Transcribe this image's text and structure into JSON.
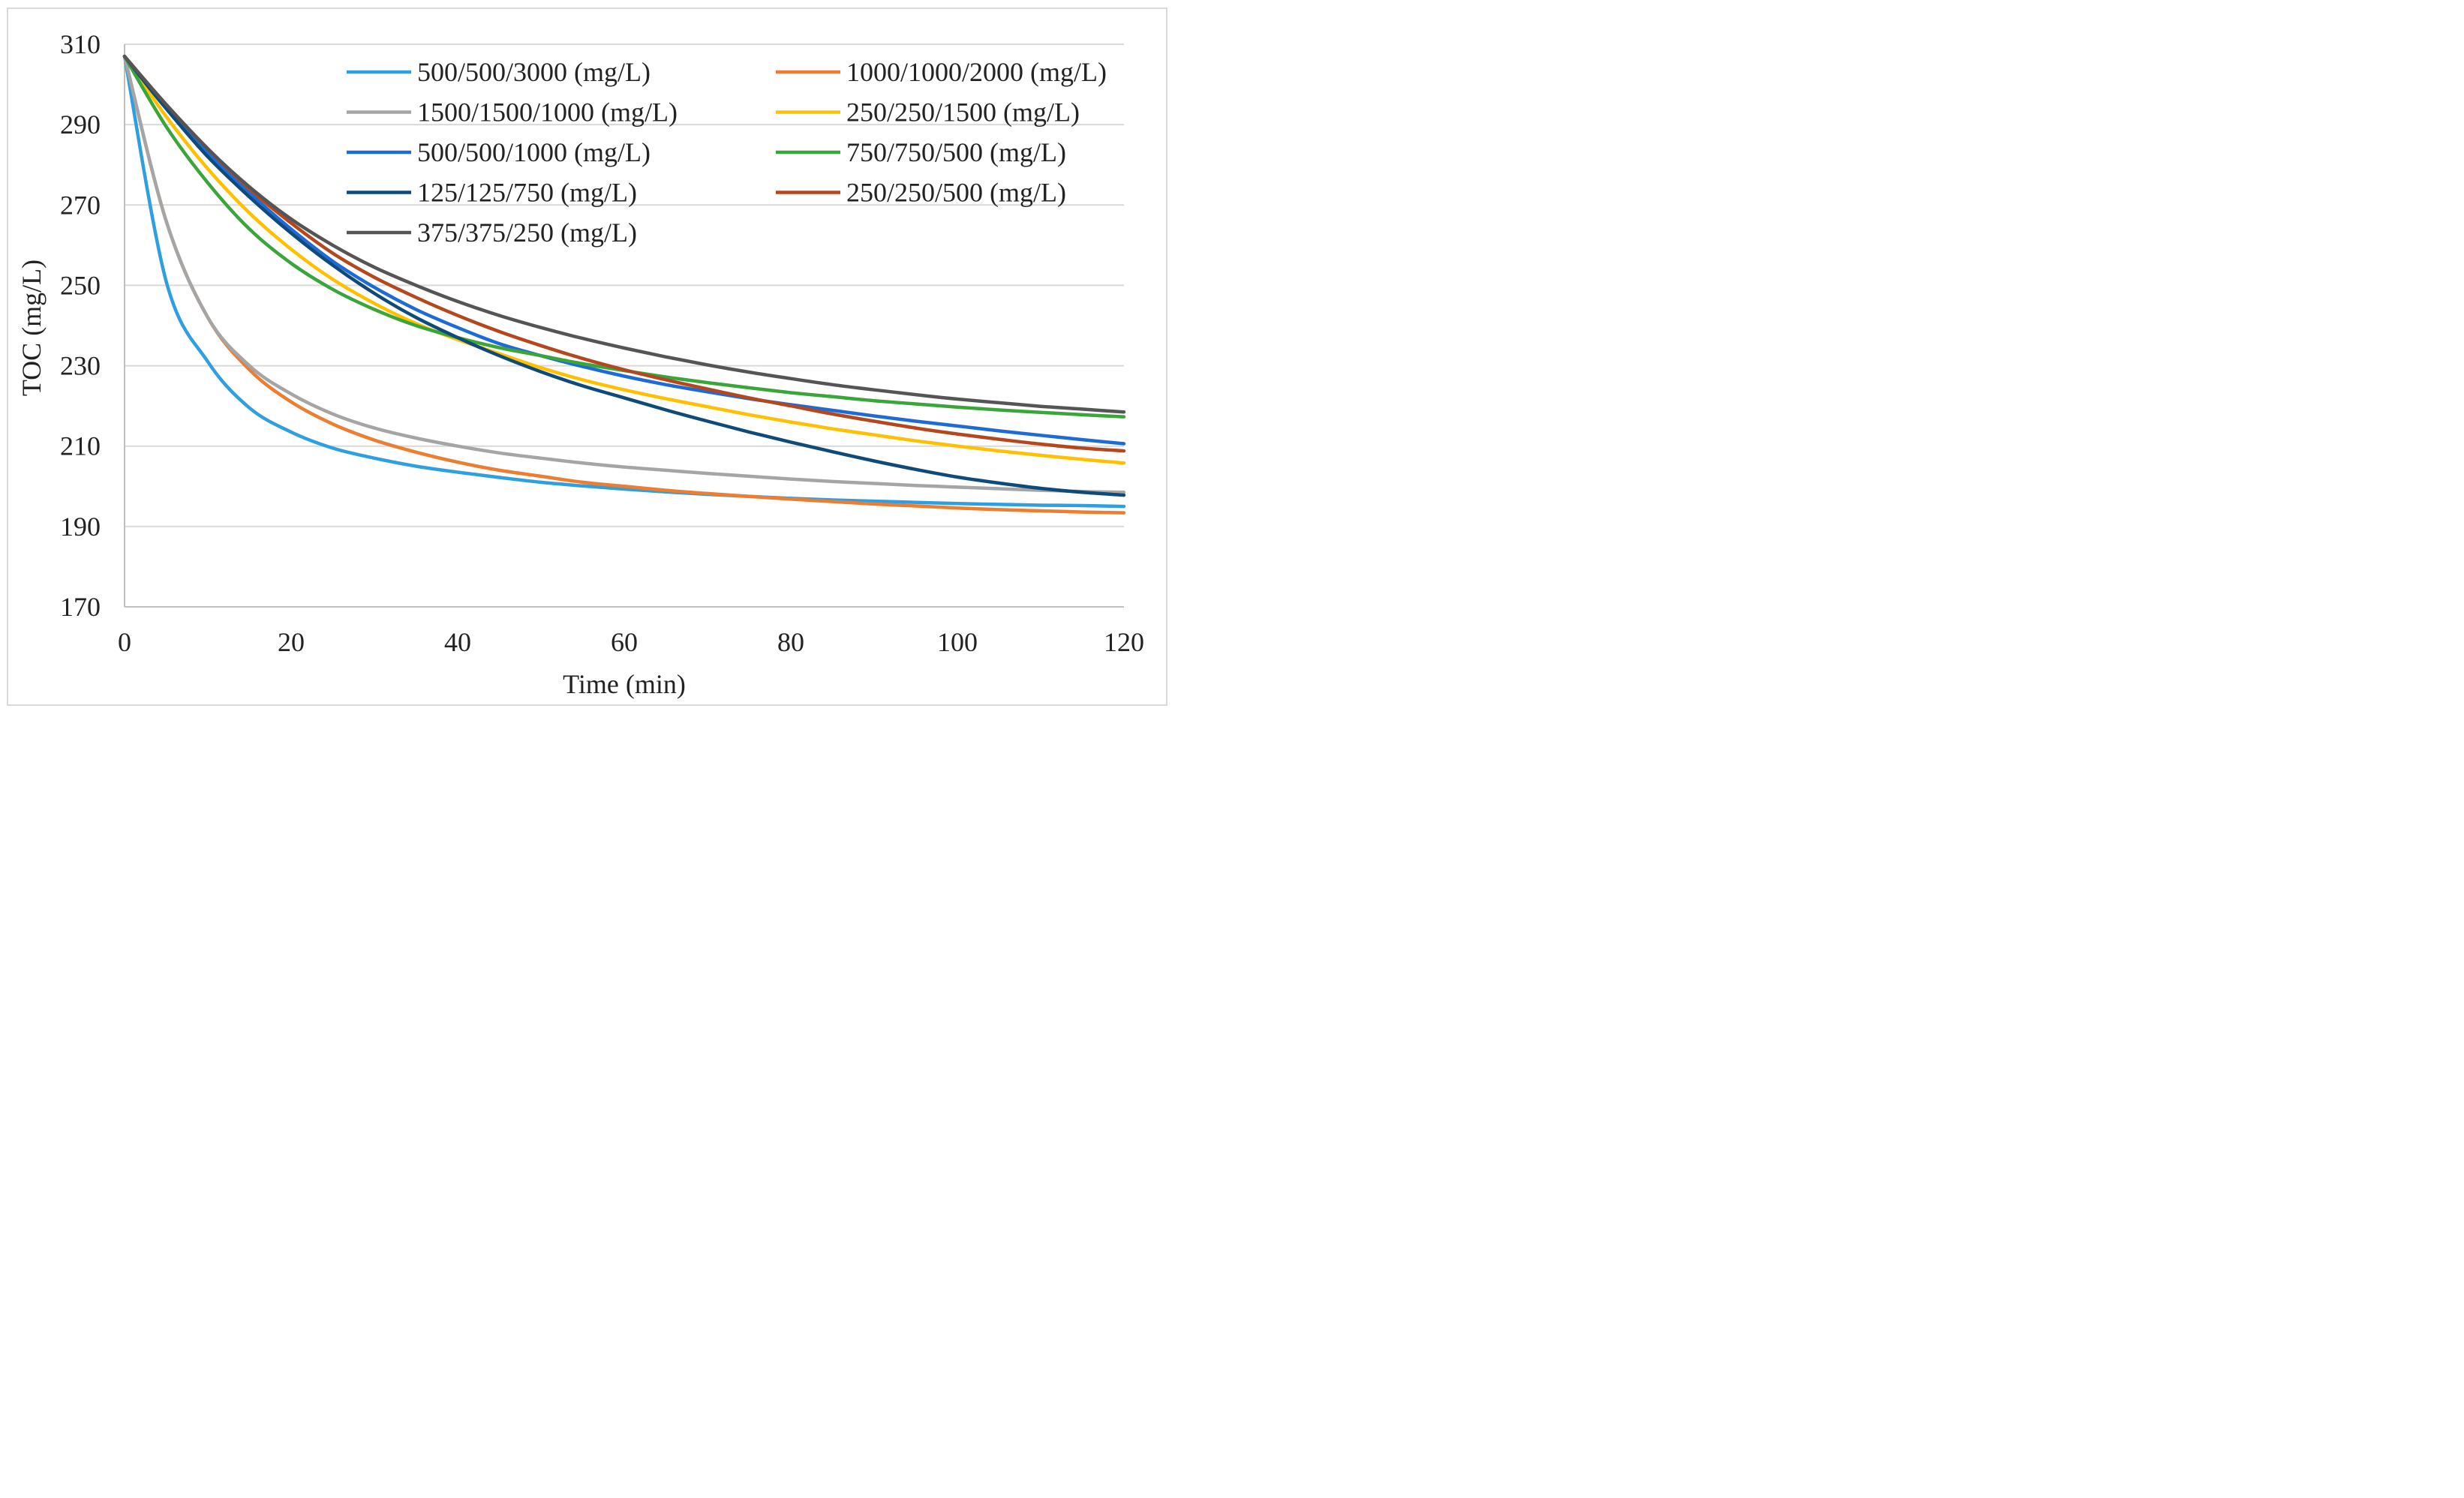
{
  "chart_data": {
    "type": "line",
    "title": "",
    "xlabel": "Time (min)",
    "ylabel": "TOC (mg/L)",
    "xlim": [
      0,
      120
    ],
    "ylim": [
      170,
      310
    ],
    "xticks": [
      0,
      20,
      40,
      60,
      80,
      100,
      120
    ],
    "yticks": [
      170,
      190,
      210,
      230,
      250,
      270,
      290,
      310
    ],
    "grid": "horizontal",
    "legend_position": "top-right",
    "x": [
      0,
      5,
      10,
      15,
      20,
      25,
      30,
      35,
      40,
      45,
      50,
      55,
      60,
      65,
      70,
      75,
      80,
      85,
      90,
      95,
      100,
      105,
      110,
      115,
      120
    ],
    "series": [
      {
        "name": "500/500/3000 (mg/L)",
        "color": "#2e9fe0",
        "values": [
          307,
          251,
          231,
          219.5,
          213.5,
          209.5,
          207,
          205,
          203.5,
          202.2,
          201,
          200.1,
          199.3,
          198.6,
          198,
          197.5,
          197,
          196.6,
          196.3,
          196,
          195.7,
          195.5,
          195.3,
          195.2,
          195
        ]
      },
      {
        "name": "1000/1000/2000 (mg/L)",
        "color": "#ed7d31",
        "values": [
          307,
          266,
          242,
          229,
          221,
          215.5,
          211.5,
          208.5,
          206,
          204,
          202.5,
          201,
          200,
          199,
          198.2,
          197.5,
          196.8,
          196.2,
          195.6,
          195.1,
          194.6,
          194.2,
          193.9,
          193.6,
          193.4
        ]
      },
      {
        "name": "1500/1500/1000 (mg/L)",
        "color": "#a5a5a5",
        "values": [
          307,
          266,
          242,
          230,
          223,
          218,
          214.5,
          212,
          210,
          208.3,
          207,
          205.8,
          204.8,
          204,
          203.2,
          202.5,
          201.8,
          201.2,
          200.7,
          200.2,
          199.8,
          199.4,
          199,
          198.7,
          198.5
        ]
      },
      {
        "name": "250/250/1500 (mg/L)",
        "color": "#ffc000",
        "values": [
          307,
          292,
          279,
          268,
          259,
          251.5,
          245.5,
          240.5,
          236.5,
          233,
          229.5,
          226.5,
          224,
          221.8,
          219.8,
          217.8,
          216,
          214.3,
          212.8,
          211.3,
          210,
          208.8,
          207.7,
          206.7,
          205.8
        ]
      },
      {
        "name": "500/500/1000 (mg/L)",
        "color": "#1f6bd6",
        "values": [
          307,
          294,
          283,
          273,
          264,
          256,
          249.5,
          244,
          239.5,
          235.5,
          232.5,
          229.8,
          227.4,
          225.3,
          223.5,
          221.8,
          220.3,
          218.9,
          217.5,
          216.2,
          215,
          213.8,
          212.7,
          211.6,
          210.6
        ]
      },
      {
        "name": "750/750/500 (mg/L)",
        "color": "#3aa63a",
        "values": [
          307,
          289.5,
          275.5,
          264,
          255.5,
          249,
          244,
          240,
          237,
          234.5,
          232.5,
          230.5,
          228.8,
          227.2,
          225.8,
          224.5,
          223.3,
          222.3,
          221.3,
          220.5,
          219.7,
          219,
          218.4,
          217.8,
          217.3
        ]
      },
      {
        "name": "125/125/750 (mg/L)",
        "color": "#0e4a7a",
        "values": [
          307,
          294,
          282,
          272,
          263,
          255,
          248,
          242,
          237,
          232.5,
          228.5,
          225,
          222,
          219,
          216.2,
          213.5,
          211,
          208.6,
          206.3,
          204.2,
          202.3,
          200.8,
          199.5,
          198.5,
          197.8
        ]
      },
      {
        "name": "250/250/500 (mg/L)",
        "color": "#b5471e",
        "values": [
          307,
          295,
          284,
          274,
          265.5,
          258,
          252,
          247,
          242.5,
          238.5,
          235,
          231.8,
          229,
          226.5,
          224.2,
          222,
          220,
          218,
          216.2,
          214.5,
          213,
          211.7,
          210.5,
          209.5,
          208.8
        ]
      },
      {
        "name": "375/375/250 (mg/L)",
        "color": "#555555",
        "values": [
          307,
          295,
          284,
          274.5,
          266.5,
          260,
          254.5,
          250,
          246,
          242.5,
          239.5,
          236.8,
          234.4,
          232.2,
          230.2,
          228.4,
          226.8,
          225.3,
          224,
          222.8,
          221.7,
          220.8,
          219.9,
          219.2,
          218.5
        ]
      }
    ]
  }
}
